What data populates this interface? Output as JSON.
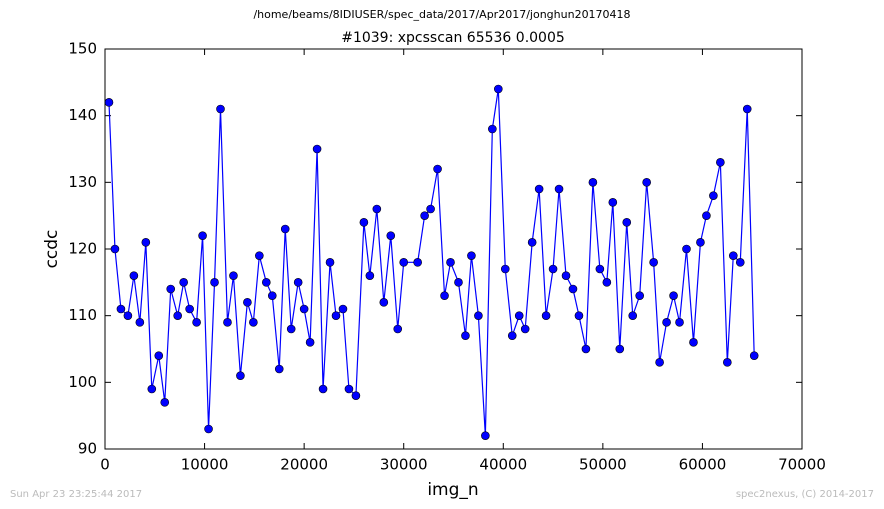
{
  "chart_data": {
    "type": "line",
    "suptitle": "/home/beams/8IDIUSER/spec_data/2017/Apr2017/jonghun20170418",
    "title": "#1039: xpcsscan 65536 0.0005",
    "xlabel": "img_n",
    "ylabel": "ccdc",
    "x": [
      400,
      1000,
      1600,
      2300,
      2900,
      3500,
      4100,
      4700,
      5400,
      6000,
      6600,
      7300,
      7900,
      8500,
      9200,
      9800,
      10400,
      11000,
      11600,
      12300,
      12900,
      13600,
      14300,
      14900,
      15500,
      16200,
      16800,
      17500,
      18100,
      18700,
      19400,
      20000,
      20600,
      21300,
      21900,
      22600,
      23200,
      23900,
      24500,
      25200,
      26000,
      26600,
      27300,
      28000,
      28700,
      29400,
      30000,
      31400,
      32100,
      32700,
      33400,
      34100,
      34700,
      35500,
      36200,
      36800,
      37500,
      38200,
      38900,
      39500,
      40200,
      40900,
      41600,
      42200,
      42900,
      43600,
      44300,
      45000,
      45600,
      46300,
      47000,
      47600,
      48300,
      49000,
      49700,
      50400,
      51000,
      51700,
      52400,
      53000,
      53700,
      54400,
      55100,
      55700,
      56400,
      57100,
      57700,
      58400,
      59100,
      59800,
      60400,
      61100,
      61800,
      62500,
      63100,
      63800,
      64500,
      65200
    ],
    "series": [
      {
        "color": "#0000ff",
        "values": [
          142,
          120,
          111,
          110,
          116,
          109,
          121,
          99,
          104,
          97,
          114,
          110,
          115,
          111,
          109,
          122,
          93,
          115,
          141,
          109,
          116,
          101,
          112,
          109,
          119,
          115,
          113,
          102,
          123,
          108,
          115,
          111,
          106,
          135,
          99,
          118,
          110,
          111,
          99,
          98,
          124,
          116,
          126,
          112,
          122,
          108,
          118,
          118,
          125,
          126,
          132,
          113,
          118,
          115,
          107,
          119,
          110,
          92,
          138,
          144,
          117,
          107,
          110,
          108,
          121,
          129,
          110,
          117,
          129,
          116,
          114,
          110,
          105,
          130,
          117,
          115,
          127,
          105,
          124,
          110,
          113,
          130,
          118,
          103,
          109,
          113,
          109,
          120,
          106,
          121,
          125,
          128,
          133,
          103,
          119,
          118,
          141,
          104
        ]
      }
    ],
    "xlim": [
      0,
      70000
    ],
    "xticks": [
      0,
      10000,
      20000,
      30000,
      40000,
      50000,
      60000,
      70000
    ],
    "ylim": [
      90,
      150
    ],
    "yticks": [
      90,
      100,
      110,
      120,
      130,
      140,
      150
    ]
  },
  "footer_left": "Sun Apr 23 23:25:44 2017",
  "footer_right": "spec2nexus, (C) 2014-2017"
}
